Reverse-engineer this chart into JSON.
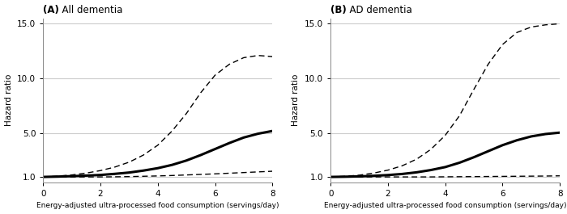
{
  "title_A_bold": "(A)",
  "title_A_rest": "  All dementia",
  "title_B_bold": "(B)",
  "title_B_rest": "  AD dementia",
  "xlabel": "Energy-adjusted ultra-processed food consumption (servings/day)",
  "ylabel": "Hazard ratio",
  "xlim": [
    0,
    8
  ],
  "ylim": [
    0.5,
    15.5
  ],
  "yticks": [
    1.0,
    5.0,
    10.0,
    15.0
  ],
  "xticks": [
    0,
    2,
    4,
    6,
    8
  ],
  "background_color": "#ffffff",
  "grid_color": "#cccccc",
  "line_color": "#000000",
  "A_main_x": [
    0,
    0.5,
    1.0,
    1.5,
    2.0,
    2.5,
    3.0,
    3.5,
    4.0,
    4.5,
    5.0,
    5.5,
    6.0,
    6.5,
    7.0,
    7.5,
    8.0
  ],
  "A_main_y": [
    1.0,
    1.03,
    1.07,
    1.12,
    1.18,
    1.28,
    1.4,
    1.58,
    1.8,
    2.1,
    2.5,
    3.0,
    3.55,
    4.1,
    4.6,
    4.95,
    5.2
  ],
  "A_upper_y": [
    1.0,
    1.07,
    1.18,
    1.35,
    1.58,
    1.9,
    2.35,
    3.0,
    3.9,
    5.2,
    6.8,
    8.7,
    10.3,
    11.3,
    11.9,
    12.1,
    12.0
  ],
  "A_lower_y": [
    1.0,
    1.0,
    1.0,
    1.0,
    1.0,
    1.01,
    1.03,
    1.06,
    1.09,
    1.13,
    1.18,
    1.23,
    1.28,
    1.34,
    1.4,
    1.46,
    1.52
  ],
  "B_main_x": [
    0,
    0.5,
    1.0,
    1.5,
    2.0,
    2.5,
    3.0,
    3.5,
    4.0,
    4.5,
    5.0,
    5.5,
    6.0,
    6.5,
    7.0,
    7.5,
    8.0
  ],
  "B_main_y": [
    1.0,
    1.02,
    1.05,
    1.1,
    1.17,
    1.27,
    1.42,
    1.63,
    1.9,
    2.3,
    2.8,
    3.35,
    3.9,
    4.35,
    4.7,
    4.92,
    5.05
  ],
  "B_upper_y": [
    1.0,
    1.06,
    1.16,
    1.35,
    1.62,
    2.02,
    2.62,
    3.52,
    4.8,
    6.6,
    9.0,
    11.3,
    13.1,
    14.2,
    14.7,
    14.9,
    15.0
  ],
  "B_lower_y": [
    1.0,
    1.0,
    1.0,
    1.0,
    1.0,
    1.0,
    1.0,
    1.0,
    1.01,
    1.02,
    1.03,
    1.04,
    1.05,
    1.06,
    1.07,
    1.08,
    1.1
  ]
}
